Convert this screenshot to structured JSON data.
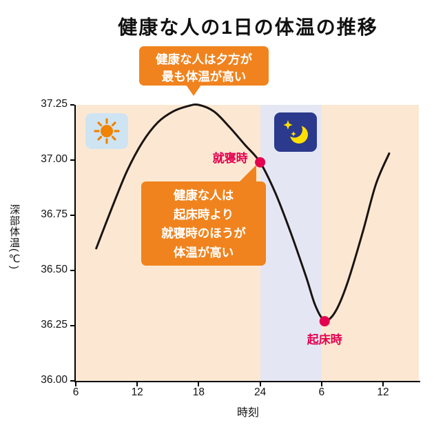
{
  "title": "健康な人の1日の体温の推移",
  "callouts": {
    "top": {
      "lines": [
        "健康な人は夕方が",
        "最も体温が高い"
      ]
    },
    "mid": {
      "lines": [
        "健康な人は",
        "起床時より",
        "就寝時のほうが",
        "体温が高い"
      ]
    }
  },
  "axes": {
    "ylabel": "深部体温(℃)",
    "xlabel": "時刻"
  },
  "icons": {
    "day": "sun-icon",
    "night": "moon-stars-icon"
  },
  "colors": {
    "accent_orange": "#f0831e",
    "plot_day_bg": "#fce8d2",
    "plot_night_bg": "#e4e7f3",
    "curve": "#1a1311",
    "marker": "#e4004f",
    "day_tile_bg": "#cfe4f3",
    "sun": "#f08300",
    "night_tile_bg": "#2b3a8c",
    "moon": "#ffe100",
    "ink": "#111111"
  },
  "chart_data": {
    "type": "line",
    "title": "健康な人の1日の体温の推移",
    "xlabel": "時刻",
    "ylabel": "深部体温(℃)",
    "x_range": [
      6,
      39.5
    ],
    "y_range": [
      36.0,
      37.25
    ],
    "grid": false,
    "x_ticks": [
      {
        "pos": 6,
        "label": "6"
      },
      {
        "pos": 12,
        "label": "12"
      },
      {
        "pos": 18,
        "label": "18"
      },
      {
        "pos": 24,
        "label": "24"
      },
      {
        "pos": 30,
        "label": "6"
      },
      {
        "pos": 36,
        "label": "12"
      }
    ],
    "y_ticks": [
      {
        "pos": 37.25,
        "label": "37.25"
      },
      {
        "pos": 37.0,
        "label": "37.00"
      },
      {
        "pos": 36.75,
        "label": "36.75"
      },
      {
        "pos": 36.5,
        "label": "36.50"
      },
      {
        "pos": 36.25,
        "label": "36.25"
      },
      {
        "pos": 36.0,
        "label": "36.00"
      }
    ],
    "night_band": {
      "from": 24,
      "to": 30
    },
    "points": [
      [
        8,
        36.6
      ],
      [
        9.5,
        36.78
      ],
      [
        11,
        36.95
      ],
      [
        12.5,
        37.08
      ],
      [
        14,
        37.17
      ],
      [
        15.5,
        37.22
      ],
      [
        17,
        37.245
      ],
      [
        18,
        37.25
      ],
      [
        19.5,
        37.22
      ],
      [
        21,
        37.15
      ],
      [
        22.5,
        37.07
      ],
      [
        24,
        36.99
      ],
      [
        25.5,
        36.85
      ],
      [
        27,
        36.67
      ],
      [
        28.5,
        36.47
      ],
      [
        29.4,
        36.34
      ],
      [
        30.3,
        36.275
      ],
      [
        31.3,
        36.31
      ],
      [
        32.5,
        36.44
      ],
      [
        34,
        36.67
      ],
      [
        35.3,
        36.89
      ],
      [
        36.6,
        37.03
      ]
    ],
    "markers": [
      {
        "name": "bedtime",
        "hour": 24,
        "temp": 36.99,
        "label": "就寝時"
      },
      {
        "name": "wake",
        "hour": 30.3,
        "temp": 36.27,
        "label": "起床時"
      }
    ]
  }
}
